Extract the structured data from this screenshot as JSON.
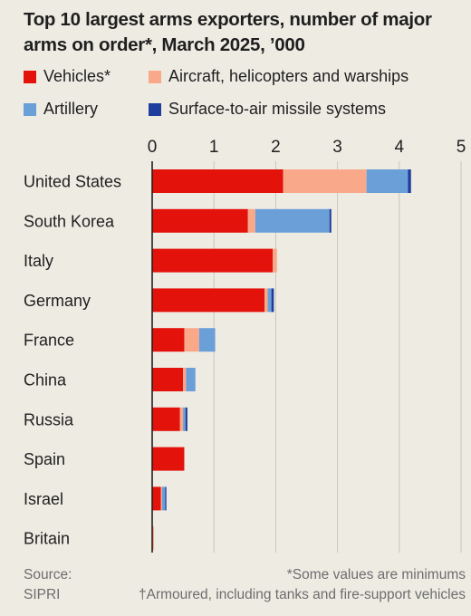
{
  "title": "Top 10 largest arms exporters, number of major arms on order*, March 2025, ’000",
  "legend": [
    {
      "label": "Vehicles*",
      "color": "#e3120b"
    },
    {
      "label": "Aircraft, helicopters and warships",
      "color": "#f9a98a"
    },
    {
      "label": "Artillery",
      "color": "#6a9fd8"
    },
    {
      "label": "Surface-to-air missile systems",
      "color": "#1f3d9c"
    }
  ],
  "footer": {
    "source_label": "Source:",
    "source_name": "SIPRI",
    "note1": "*Some values are minimums",
    "note2": "†Armoured, including tanks and fire-support vehicles"
  },
  "chart_data": {
    "type": "bar",
    "orientation": "horizontal",
    "stacked": true,
    "title": "Top 10 largest arms exporters, number of major arms on order*, March 2025, ’000",
    "categories": [
      "United States",
      "South Korea",
      "Italy",
      "Germany",
      "France",
      "China",
      "Russia",
      "Spain",
      "Israel",
      "Britain"
    ],
    "series": [
      {
        "name": "Vehicles*",
        "color": "#e3120b",
        "values": [
          2.12,
          1.55,
          1.95,
          1.82,
          0.52,
          0.5,
          0.45,
          0.52,
          0.14,
          0.01
        ]
      },
      {
        "name": "Aircraft, helicopters and warships",
        "color": "#f9a98a",
        "values": [
          1.35,
          0.12,
          0.07,
          0.05,
          0.24,
          0.05,
          0.05,
          0.0,
          0.02,
          0.02
        ]
      },
      {
        "name": "Artillery",
        "color": "#6a9fd8",
        "values": [
          0.67,
          1.2,
          0.0,
          0.06,
          0.26,
          0.15,
          0.04,
          0.0,
          0.05,
          0.0
        ]
      },
      {
        "name": "Surface-to-air missile systems",
        "color": "#1f3d9c",
        "values": [
          0.05,
          0.03,
          0.0,
          0.04,
          0.0,
          0.0,
          0.03,
          0.0,
          0.02,
          0.0
        ]
      }
    ],
    "xlim": [
      0,
      5
    ],
    "xticks": [
      0,
      1,
      2,
      3,
      4,
      5
    ],
    "grid": true,
    "legend_position": "top"
  }
}
